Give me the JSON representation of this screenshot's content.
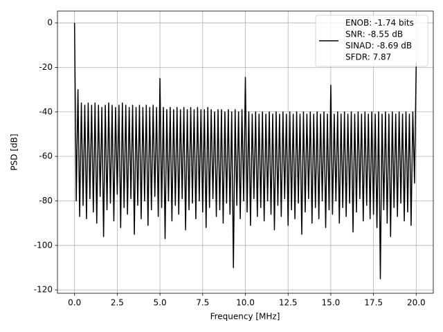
{
  "chart_data": {
    "type": "line",
    "xlabel": "Frequency [MHz]",
    "ylabel": "PSD [dB]",
    "xlim": [
      -1,
      21
    ],
    "ylim": [
      -121.5,
      5.3
    ],
    "xticks": [
      {
        "value": 0,
        "label": "0.0"
      },
      2.5,
      {
        "value": 5,
        "label": "5.0"
      },
      7.5,
      {
        "value": 10,
        "label": "10.0"
      },
      12.5,
      {
        "value": 15,
        "label": "15.0"
      },
      17.5,
      {
        "value": 20,
        "label": "20.0"
      }
    ],
    "yticks": [
      0,
      -20,
      -40,
      -60,
      -80,
      -100,
      -120
    ],
    "grid": true,
    "legend": "upper right",
    "x": [
      0,
      0.1,
      0.2,
      0.3,
      0.4,
      0.5,
      0.6,
      0.7,
      0.8,
      0.9,
      1,
      1.1,
      1.2,
      1.3,
      1.4,
      1.5,
      1.6,
      1.7,
      1.8,
      1.9,
      2,
      2.1,
      2.2,
      2.3,
      2.4,
      2.5,
      2.6,
      2.7,
      2.8,
      2.9,
      3,
      3.1,
      3.2,
      3.3,
      3.4,
      3.5,
      3.6,
      3.7,
      3.8,
      3.9,
      4,
      4.1,
      4.2,
      4.3,
      4.4,
      4.5,
      4.6,
      4.7,
      4.8,
      4.9,
      5,
      5.1,
      5.2,
      5.3,
      5.4,
      5.5,
      5.6,
      5.7,
      5.8,
      5.9,
      6,
      6.1,
      6.2,
      6.3,
      6.4,
      6.5,
      6.6,
      6.7,
      6.8,
      6.9,
      7,
      7.1,
      7.2,
      7.3,
      7.4,
      7.5,
      7.6,
      7.7,
      7.8,
      7.9,
      8,
      8.1,
      8.2,
      8.3,
      8.4,
      8.5,
      8.6,
      8.7,
      8.8,
      8.9,
      9,
      9.1,
      9.2,
      9.3,
      9.4,
      9.5,
      9.6,
      9.7,
      9.8,
      9.9,
      10,
      10.1,
      10.2,
      10.3,
      10.4,
      10.5,
      10.6,
      10.7,
      10.8,
      10.9,
      11,
      11.1,
      11.2,
      11.3,
      11.4,
      11.5,
      11.6,
      11.7,
      11.8,
      11.9,
      12,
      12.1,
      12.2,
      12.3,
      12.4,
      12.5,
      12.6,
      12.7,
      12.8,
      12.9,
      13,
      13.1,
      13.2,
      13.3,
      13.4,
      13.5,
      13.6,
      13.7,
      13.8,
      13.9,
      14,
      14.1,
      14.2,
      14.3,
      14.4,
      14.5,
      14.6,
      14.7,
      14.8,
      14.9,
      15,
      15.1,
      15.2,
      15.3,
      15.4,
      15.5,
      15.6,
      15.7,
      15.8,
      15.9,
      16,
      16.1,
      16.2,
      16.3,
      16.4,
      16.5,
      16.6,
      16.7,
      16.8,
      16.9,
      17,
      17.1,
      17.2,
      17.3,
      17.4,
      17.5,
      17.6,
      17.7,
      17.8,
      17.9,
      18,
      18.1,
      18.2,
      18.3,
      18.4,
      18.5,
      18.6,
      18.7,
      18.8,
      18.9,
      19,
      19.1,
      19.2,
      19.3,
      19.4,
      19.5,
      19.6,
      19.7,
      19.8,
      19.9,
      20
    ],
    "series": [
      {
        "name": "ENOB: -1.74 bits\nSNR: -8.55 dB\nSINAD: -8.69 dB\nSFDR: 7.87",
        "color": "#000000",
        "values": [
          0,
          -80,
          -30,
          -87,
          -36,
          -82,
          -37,
          -88,
          -36,
          -79,
          -37,
          -85,
          -36,
          -90,
          -37,
          -78,
          -38,
          -96,
          -37,
          -84,
          -36,
          -81,
          -37,
          -89,
          -38,
          -77,
          -37,
          -92,
          -36,
          -83,
          -37,
          -86,
          -38,
          -79,
          -37,
          -95,
          -38,
          -82,
          -37,
          -88,
          -38,
          -80,
          -37,
          -91,
          -38,
          -84,
          -37,
          -78,
          -38,
          -87,
          -25,
          -83,
          -38,
          -97,
          -39,
          -80,
          -38,
          -89,
          -39,
          -82,
          -38,
          -86,
          -39,
          -79,
          -38,
          -93,
          -39,
          -84,
          -38,
          -81,
          -39,
          -88,
          -38,
          -80,
          -39,
          -85,
          -39,
          -92,
          -38,
          -83,
          -39,
          -79,
          -40,
          -87,
          -39,
          -84,
          -39,
          -90,
          -40,
          -81,
          -39,
          -86,
          -40,
          -110,
          -39,
          -82,
          -40,
          -88,
          -39,
          -80,
          -24.5,
          -85,
          -40,
          -91,
          -41,
          -79,
          -40,
          -87,
          -41,
          -83,
          -40,
          -89,
          -41,
          -80,
          -40,
          -86,
          -41,
          -93,
          -40,
          -82,
          -41,
          -87,
          -40,
          -79,
          -41,
          -91,
          -40,
          -84,
          -41,
          -88,
          -40,
          -81,
          -41,
          -95,
          -40,
          -85,
          -41,
          -79,
          -40,
          -90,
          -41,
          -83,
          -40,
          -88,
          -41,
          -80,
          -40,
          -92,
          -41,
          -84,
          -28,
          -86,
          -41,
          -80,
          -40,
          -90,
          -41,
          -83,
          -40,
          -87,
          -41,
          -81,
          -40,
          -94,
          -41,
          -85,
          -40,
          -79,
          -41,
          -89,
          -40,
          -82,
          -41,
          -88,
          -40,
          -86,
          -41,
          -92,
          -40,
          -115,
          -41,
          -84,
          -40,
          -90,
          -41,
          -96,
          -40,
          -83,
          -41,
          -87,
          -40,
          -81,
          -41,
          -89,
          -40,
          -85,
          -41,
          -91,
          -40,
          -72,
          -18
        ]
      }
    ]
  }
}
